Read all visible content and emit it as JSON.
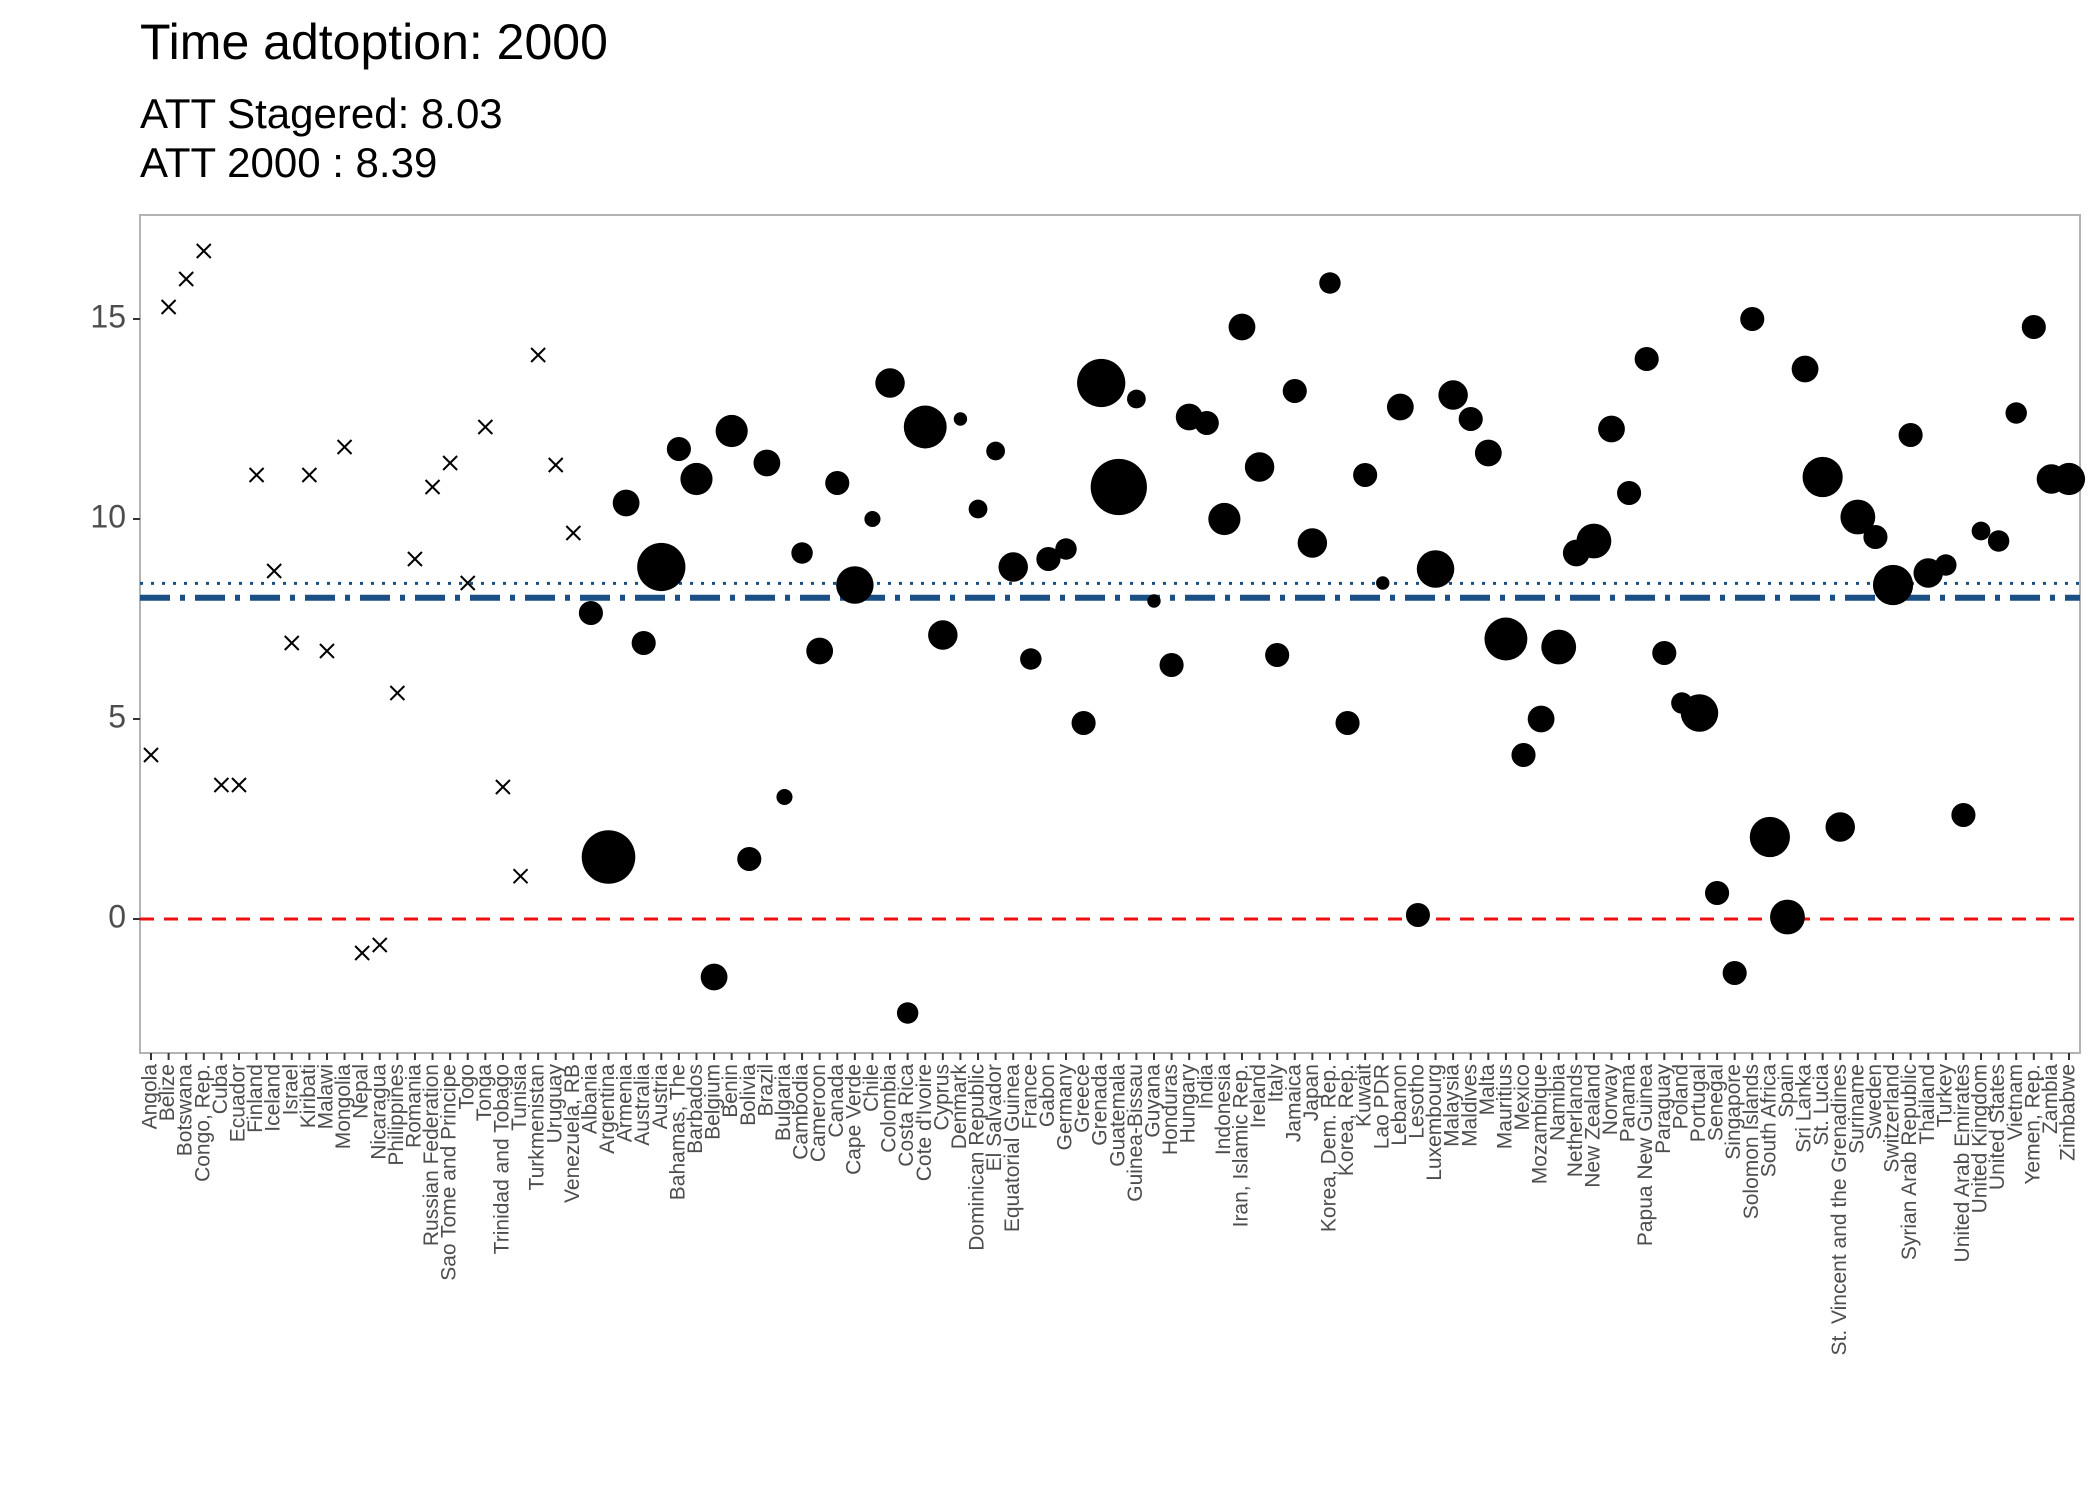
{
  "chart_data": {
    "type": "scatter",
    "title": "Time adtoption: 2000",
    "subtitle": [
      "ATT Stagered: 8.03",
      "ATT 2000 : 8.39"
    ],
    "categories": [
      "Angola",
      "Belize",
      "Botswana",
      "Congo, Rep.",
      "Cuba",
      "Ecuador",
      "Finland",
      "Iceland",
      "Israel",
      "Kiribati",
      "Malawi",
      "Mongolia",
      "Nepal",
      "Nicaragua",
      "Philippines",
      "Romania",
      "Russian Federation",
      "Sao Tome and Principe",
      "Togo",
      "Tonga",
      "Trinidad and Tobago",
      "Tunisia",
      "Turkmenistan",
      "Uruguay",
      "Venezuela, RB",
      "Albania",
      "Argentina",
      "Armenia",
      "Australia",
      "Austria",
      "Bahamas, The",
      "Barbados",
      "Belgium",
      "Benin",
      "Bolivia",
      "Brazil",
      "Bulgaria",
      "Cambodia",
      "Cameroon",
      "Canada",
      "Cape Verde",
      "Chile",
      "Colombia",
      "Costa Rica",
      "Cote d'Ivoire",
      "Cyprus",
      "Denmark",
      "Dominican Republic",
      "El Salvador",
      "Equatorial Guinea",
      "France",
      "Gabon",
      "Germany",
      "Greece",
      "Grenada",
      "Guatemala",
      "Guinea-Bissau",
      "Guyana",
      "Honduras",
      "Hungary",
      "India",
      "Indonesia",
      "Iran, Islamic Rep.",
      "Ireland",
      "Italy",
      "Jamaica",
      "Japan",
      "Korea, Dem. Rep.",
      "Korea, Rep.",
      "Kuwait",
      "Lao PDR",
      "Lebanon",
      "Lesotho",
      "Luxembourg",
      "Malaysia",
      "Maldives",
      "Malta",
      "Mauritius",
      "Mexico",
      "Mozambique",
      "Namibia",
      "Netherlands",
      "New Zealand",
      "Norway",
      "Panama",
      "Papua New Guinea",
      "Paraguay",
      "Poland",
      "Portugal",
      "Senegal",
      "Singapore",
      "Solomon Islands",
      "South Africa",
      "Spain",
      "Sri Lanka",
      "St. Lucia",
      "St. Vincent and the Grenadines",
      "Suriname",
      "Sweden",
      "Switzerland",
      "Syrian Arab Republic",
      "Thailand",
      "Turkey",
      "United Arab Emirates",
      "United Kingdom",
      "United States",
      "Vietnam",
      "Yemen, Rep.",
      "Zambia",
      "Zimbabwe"
    ],
    "values": [
      4.1,
      15.3,
      16.0,
      16.7,
      3.35,
      3.35,
      11.1,
      8.7,
      6.9,
      11.1,
      6.7,
      11.8,
      -0.85,
      -0.65,
      5.65,
      9.0,
      10.8,
      11.4,
      8.4,
      12.3,
      3.3,
      1.07,
      14.1,
      11.35,
      9.65,
      7.65,
      1.55,
      10.4,
      6.9,
      8.8,
      11.75,
      11.0,
      -1.45,
      12.2,
      1.5,
      11.4,
      3.05,
      9.15,
      6.7,
      10.9,
      8.35,
      10.0,
      13.4,
      -2.35,
      12.3,
      7.1,
      12.5,
      10.25,
      11.7,
      8.8,
      6.5,
      9.0,
      9.25,
      4.9,
      13.4,
      10.8,
      13.0,
      7.95,
      6.35,
      12.55,
      12.4,
      10.0,
      14.8,
      11.3,
      6.6,
      13.2,
      9.4,
      15.9,
      4.9,
      11.1,
      8.4,
      12.8,
      0.1,
      8.75,
      13.1,
      12.5,
      11.65,
      7.0,
      4.1,
      5.0,
      6.8,
      9.15,
      9.45,
      12.25,
      10.65,
      14.0,
      6.65,
      5.4,
      5.15,
      0.65,
      -1.35,
      15.0,
      2.05,
      0.05,
      13.75,
      11.05,
      2.3,
      10.05,
      9.55,
      8.35,
      12.1,
      8.65,
      8.85,
      2.6,
      9.7,
      9.45,
      12.65,
      14.8,
      11.0,
      11.0
    ],
    "sizes": [
      null,
      null,
      null,
      null,
      null,
      null,
      null,
      null,
      null,
      null,
      null,
      null,
      null,
      null,
      null,
      null,
      null,
      null,
      null,
      null,
      null,
      null,
      null,
      null,
      null,
      9,
      20,
      10,
      9,
      18,
      9,
      12,
      10,
      12,
      9,
      10,
      6,
      8,
      10,
      9,
      14,
      6,
      11,
      8,
      16,
      11,
      5,
      7,
      7,
      11,
      8,
      9,
      8,
      9,
      18,
      21,
      7,
      5,
      9,
      10,
      9,
      12,
      10,
      11,
      9,
      9,
      11,
      8,
      9,
      9,
      5,
      10,
      9,
      14,
      11,
      9,
      10,
      16,
      9,
      10,
      13,
      10,
      13,
      10,
      9,
      9,
      9,
      8,
      14,
      9,
      9,
      9,
      15,
      13,
      10,
      15,
      11,
      13,
      9,
      15,
      9,
      11,
      8,
      9,
      7,
      8,
      8,
      9,
      11,
      12
    ],
    "color": "#000000",
    "hlines": [
      {
        "value": 0,
        "color": "#ee1111",
        "dash": "14 10"
      },
      {
        "value": 8.03,
        "color": "#1a4f86",
        "dash": "30 10 5 10"
      },
      {
        "value": 8.39,
        "color": "#1a4f86",
        "dash": "3 8"
      }
    ],
    "ylim": [
      -3.35,
      17.6
    ],
    "yticks": [
      0,
      5,
      10,
      15
    ]
  }
}
